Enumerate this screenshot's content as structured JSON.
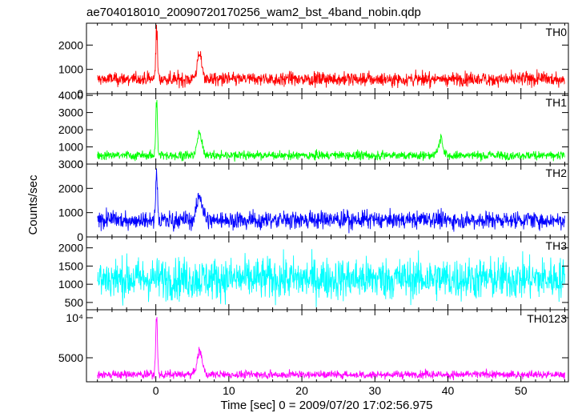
{
  "title": "ae704018010_20090720170256_wam2_bst_4band_nobin.qdp",
  "xlabel": "Time [sec] 0 = 2009/07/20 17:02:56.975",
  "ylabel": "Counts/sec",
  "chart_data": {
    "type": "line",
    "title": "ae704018010_20090720170256_wam2_bst_4band_nobin.qdp",
    "xlabel": "Time [sec] 0 = 2009/07/20 17:02:56.975",
    "ylabel": "Counts/sec",
    "xlim": [
      -9.5,
      56.5
    ],
    "xticks": [
      0,
      10,
      20,
      30,
      40,
      50
    ],
    "x_range_data": [
      -8,
      56
    ],
    "panels": [
      {
        "name": "TH0",
        "color": "#ff0000",
        "ylim": [
          0,
          2900
        ],
        "yticks": [
          0,
          1000,
          2000
        ],
        "yticklabels": [
          "0",
          "1000",
          "2000"
        ],
        "baseline_mean": 600,
        "baseline_noise": 260,
        "features": [
          {
            "x": 0.1,
            "peak": 2900,
            "note": "burst spike"
          },
          {
            "x": 6.0,
            "peak": 1650,
            "note": "secondary bump"
          }
        ]
      },
      {
        "name": "TH1",
        "color": "#00ff00",
        "ylim": [
          0,
          4100
        ],
        "yticks": [
          0,
          1000,
          2000,
          3000,
          4000
        ],
        "yticklabels": [
          "0",
          "1000",
          "2000",
          "3000",
          "4000"
        ],
        "baseline_mean": 500,
        "baseline_noise": 230,
        "features": [
          {
            "x": 0.1,
            "peak": 4100,
            "note": "burst spike"
          },
          {
            "x": 6.0,
            "peak": 1900,
            "note": "secondary bump"
          },
          {
            "x": 39.0,
            "peak": 1500,
            "note": "small bump"
          }
        ]
      },
      {
        "name": "TH2",
        "color": "#0000ff",
        "ylim": [
          0,
          3000
        ],
        "yticks": [
          0,
          1000,
          2000,
          3000
        ],
        "yticklabels": [
          "0",
          "1000",
          "2000",
          "3000"
        ],
        "baseline_mean": 700,
        "baseline_noise": 330,
        "features": [
          {
            "x": 0.1,
            "peak": 3000,
            "note": "burst spike"
          },
          {
            "x": 6.0,
            "peak": 1900,
            "note": "secondary bump"
          }
        ]
      },
      {
        "name": "TH3",
        "color": "#00ffff",
        "ylim": [
          300,
          2300
        ],
        "yticks": [
          500,
          1000,
          1500,
          2000
        ],
        "yticklabels": [
          "500",
          "1000",
          "1500",
          "2000"
        ],
        "baseline_mean": 1150,
        "baseline_noise": 520,
        "features": []
      },
      {
        "name": "TH0123",
        "color": "#ff00ff",
        "ylim": [
          2000,
          11000
        ],
        "yticks": [
          5000,
          10000
        ],
        "yticklabels": [
          "5000",
          "10⁴"
        ],
        "baseline_mean": 2900,
        "baseline_noise": 450,
        "features": [
          {
            "x": 0.1,
            "peak": 11000,
            "note": "burst spike"
          },
          {
            "x": 6.0,
            "peak": 6200,
            "note": "secondary bump"
          }
        ]
      }
    ]
  }
}
